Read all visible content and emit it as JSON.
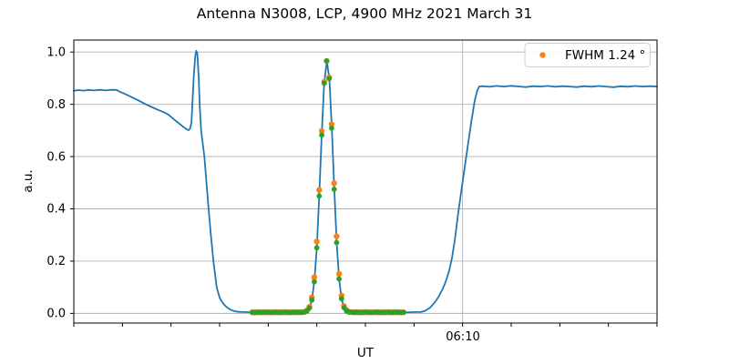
{
  "title": "Antenna N3008, LCP, 4900 MHz 2021 March 31",
  "colors": {
    "signal_line": "#1f77b4",
    "fit_points": "#ff7f0e",
    "data_points": "#2ca02c",
    "grid": "#b0b0b0",
    "spine": "#000000",
    "legend_border": "#cccccc",
    "background": "#ffffff"
  },
  "chart_data": {
    "type": "line",
    "title": "Antenna N3008, LCP, 4900 MHz 2021 March 31",
    "xlabel": "UT",
    "ylabel": "a.u.",
    "x_axis": {
      "unit": "minutes after 06:02 UT",
      "range": [
        0,
        12
      ],
      "minor_tick_positions": [
        0,
        1,
        2,
        3,
        4,
        5,
        6,
        7,
        8,
        9,
        10,
        11,
        12
      ],
      "labeled_ticks": [
        {
          "pos": 8,
          "label": "06:10"
        }
      ],
      "grid_on_labeled": true
    },
    "y_axis": {
      "range": [
        -0.037,
        1.046
      ],
      "ticks": [
        0.0,
        0.2,
        0.4,
        0.6,
        0.8,
        1.0
      ],
      "tick_labels": [
        "0.0",
        "0.2",
        "0.4",
        "0.6",
        "0.8",
        "1.0"
      ],
      "grid": true
    },
    "legend": {
      "label": "FWHM 1.24 °",
      "marker": "circle",
      "marker_color": "#ff7f0e",
      "position": "upper right"
    },
    "series": [
      {
        "name": "drift_scan_signal",
        "type": "line",
        "color": "#1f77b4",
        "width": 1.8,
        "points": [
          [
            0,
            0.852
          ],
          [
            0.1,
            0.8545
          ],
          [
            0.2,
            0.8525
          ],
          [
            0.3,
            0.855
          ],
          [
            0.42,
            0.853
          ],
          [
            0.54,
            0.8555
          ],
          [
            0.66,
            0.853
          ],
          [
            0.78,
            0.8555
          ],
          [
            0.88,
            0.855
          ],
          [
            0.95,
            0.848
          ],
          [
            1.05,
            0.84
          ],
          [
            1.15,
            0.831
          ],
          [
            1.25,
            0.822
          ],
          [
            1.35,
            0.813
          ],
          [
            1.48,
            0.8
          ],
          [
            1.6,
            0.79
          ],
          [
            1.72,
            0.78
          ],
          [
            1.85,
            0.77
          ],
          [
            1.95,
            0.76
          ],
          [
            2.05,
            0.744
          ],
          [
            2.15,
            0.729
          ],
          [
            2.25,
            0.714
          ],
          [
            2.32,
            0.705
          ],
          [
            2.36,
            0.701
          ],
          [
            2.39,
            0.706
          ],
          [
            2.42,
            0.73
          ],
          [
            2.44,
            0.8
          ],
          [
            2.47,
            0.91
          ],
          [
            2.5,
            0.985
          ],
          [
            2.52,
            1.005
          ],
          [
            2.54,
            0.995
          ],
          [
            2.57,
            0.9
          ],
          [
            2.59,
            0.8
          ],
          [
            2.62,
            0.7
          ],
          [
            2.686,
            0.6
          ],
          [
            2.73,
            0.5
          ],
          [
            2.774,
            0.4
          ],
          [
            2.82,
            0.3
          ],
          [
            2.873,
            0.2
          ],
          [
            2.94,
            0.1
          ],
          [
            3.0,
            0.06
          ],
          [
            3.04,
            0.047
          ],
          [
            3.1,
            0.032
          ],
          [
            3.17,
            0.02
          ],
          [
            3.25,
            0.012
          ],
          [
            3.32,
            0.008
          ],
          [
            3.4,
            0.006
          ],
          [
            3.5,
            0.005
          ],
          [
            3.67,
            0.004
          ],
          [
            3.9,
            0.0035
          ],
          [
            4.1,
            0.0045
          ],
          [
            4.3,
            0.004
          ],
          [
            4.5,
            0.0035
          ],
          [
            4.65,
            0.004
          ],
          [
            4.74,
            0.005
          ],
          [
            4.8,
            0.009
          ],
          [
            4.85,
            0.021
          ],
          [
            4.9,
            0.053
          ],
          [
            4.95,
            0.124
          ],
          [
            5.0,
            0.252
          ],
          [
            5.05,
            0.449
          ],
          [
            5.1,
            0.68
          ],
          [
            5.15,
            0.879
          ],
          [
            5.206,
            0.966
          ],
          [
            5.26,
            0.895
          ],
          [
            5.31,
            0.705
          ],
          [
            5.36,
            0.471
          ],
          [
            5.41,
            0.268
          ],
          [
            5.46,
            0.13
          ],
          [
            5.51,
            0.055
          ],
          [
            5.56,
            0.022
          ],
          [
            5.61,
            0.009
          ],
          [
            5.66,
            0.005
          ],
          [
            5.72,
            0.004
          ],
          [
            5.9,
            0.0035
          ],
          [
            6.1,
            0.0045
          ],
          [
            6.3,
            0.004
          ],
          [
            6.5,
            0.0035
          ],
          [
            6.7,
            0.004
          ],
          [
            6.9,
            0.0045
          ],
          [
            7.05,
            0.005
          ],
          [
            7.14,
            0.005
          ],
          [
            7.23,
            0.01
          ],
          [
            7.33,
            0.022
          ],
          [
            7.42,
            0.04
          ],
          [
            7.5,
            0.062
          ],
          [
            7.58,
            0.09
          ],
          [
            7.65,
            0.12
          ],
          [
            7.72,
            0.16
          ],
          [
            7.78,
            0.21
          ],
          [
            7.84,
            0.28
          ],
          [
            7.9,
            0.37
          ],
          [
            7.97,
            0.465
          ],
          [
            8.04,
            0.555
          ],
          [
            8.11,
            0.645
          ],
          [
            8.18,
            0.735
          ],
          [
            8.25,
            0.815
          ],
          [
            8.3,
            0.852
          ],
          [
            8.34,
            0.868
          ],
          [
            8.4,
            0.8695
          ],
          [
            8.55,
            0.867
          ],
          [
            8.7,
            0.8705
          ],
          [
            8.85,
            0.868
          ],
          [
            9.0,
            0.871
          ],
          [
            9.15,
            0.8685
          ],
          [
            9.3,
            0.866
          ],
          [
            9.45,
            0.8695
          ],
          [
            9.6,
            0.868
          ],
          [
            9.75,
            0.8705
          ],
          [
            9.9,
            0.867
          ],
          [
            10.05,
            0.8695
          ],
          [
            10.2,
            0.868
          ],
          [
            10.35,
            0.866
          ],
          [
            10.5,
            0.8695
          ],
          [
            10.65,
            0.8675
          ],
          [
            10.8,
            0.87
          ],
          [
            10.95,
            0.868
          ],
          [
            11.1,
            0.8655
          ],
          [
            11.25,
            0.869
          ],
          [
            11.4,
            0.8675
          ],
          [
            11.55,
            0.87
          ],
          [
            11.7,
            0.868
          ],
          [
            11.85,
            0.8695
          ],
          [
            12,
            0.868
          ]
        ]
      },
      {
        "name": "gaussian_fit_points",
        "type": "scatter",
        "color": "#ff7f0e",
        "radius": 3.2,
        "points": [
          [
            3.673,
            0.004
          ],
          [
            3.724,
            0.004
          ],
          [
            3.775,
            0.004
          ],
          [
            3.826,
            0.004
          ],
          [
            3.877,
            0.004
          ],
          [
            3.928,
            0.004
          ],
          [
            3.979,
            0.004
          ],
          [
            4.03,
            0.004
          ],
          [
            4.081,
            0.004
          ],
          [
            4.132,
            0.004
          ],
          [
            4.183,
            0.004
          ],
          [
            4.234,
            0.004
          ],
          [
            4.285,
            0.004
          ],
          [
            4.336,
            0.004
          ],
          [
            4.387,
            0.004
          ],
          [
            4.438,
            0.004
          ],
          [
            4.489,
            0.004
          ],
          [
            4.54,
            0.004
          ],
          [
            4.591,
            0.004
          ],
          [
            4.642,
            0.004
          ],
          [
            4.693,
            0.0045
          ],
          [
            4.744,
            0.006
          ],
          [
            4.795,
            0.011
          ],
          [
            4.846,
            0.025
          ],
          [
            4.897,
            0.061
          ],
          [
            4.948,
            0.138
          ],
          [
            4.999,
            0.275
          ],
          [
            5.05,
            0.472
          ],
          [
            5.101,
            0.698
          ],
          [
            5.152,
            0.886
          ],
          [
            5.203,
            0.966
          ],
          [
            5.254,
            0.903
          ],
          [
            5.305,
            0.724
          ],
          [
            5.356,
            0.498
          ],
          [
            5.407,
            0.295
          ],
          [
            5.458,
            0.151
          ],
          [
            5.509,
            0.068
          ],
          [
            5.56,
            0.028
          ],
          [
            5.611,
            0.012
          ],
          [
            5.662,
            0.006
          ],
          [
            5.713,
            0.005
          ],
          [
            5.764,
            0.0045
          ],
          [
            5.815,
            0.004
          ],
          [
            5.866,
            0.004
          ],
          [
            5.917,
            0.004
          ],
          [
            5.968,
            0.004
          ],
          [
            6.019,
            0.004
          ],
          [
            6.07,
            0.004
          ],
          [
            6.121,
            0.004
          ],
          [
            6.172,
            0.004
          ],
          [
            6.223,
            0.004
          ],
          [
            6.274,
            0.004
          ],
          [
            6.325,
            0.004
          ],
          [
            6.376,
            0.004
          ],
          [
            6.427,
            0.004
          ],
          [
            6.478,
            0.004
          ],
          [
            6.529,
            0.004
          ],
          [
            6.58,
            0.004
          ],
          [
            6.631,
            0.004
          ],
          [
            6.682,
            0.004
          ],
          [
            6.733,
            0.004
          ],
          [
            6.784,
            0.004
          ]
        ]
      },
      {
        "name": "selected_data_points",
        "type": "scatter",
        "color": "#2ca02c",
        "radius": 2.9,
        "points": [
          [
            3.673,
            0.004
          ],
          [
            3.724,
            0.003
          ],
          [
            3.775,
            0.005
          ],
          [
            3.826,
            0.004
          ],
          [
            3.877,
            0.003
          ],
          [
            3.928,
            0.005
          ],
          [
            3.979,
            0.004
          ],
          [
            4.03,
            0.004
          ],
          [
            4.081,
            0.003
          ],
          [
            4.132,
            0.005
          ],
          [
            4.183,
            0.004
          ],
          [
            4.234,
            0.003
          ],
          [
            4.285,
            0.004
          ],
          [
            4.336,
            0.005
          ],
          [
            4.387,
            0.004
          ],
          [
            4.438,
            0.003
          ],
          [
            4.489,
            0.004
          ],
          [
            4.54,
            0.004
          ],
          [
            4.591,
            0.005
          ],
          [
            4.642,
            0.004
          ],
          [
            4.693,
            0.004
          ],
          [
            4.744,
            0.005
          ],
          [
            4.795,
            0.009
          ],
          [
            4.846,
            0.02
          ],
          [
            4.897,
            0.051
          ],
          [
            4.948,
            0.121
          ],
          [
            4.999,
            0.251
          ],
          [
            5.05,
            0.449
          ],
          [
            5.101,
            0.682
          ],
          [
            5.152,
            0.881
          ],
          [
            5.203,
            0.966
          ],
          [
            5.254,
            0.898
          ],
          [
            5.305,
            0.709
          ],
          [
            5.356,
            0.475
          ],
          [
            5.407,
            0.271
          ],
          [
            5.458,
            0.132
          ],
          [
            5.509,
            0.056
          ],
          [
            5.56,
            0.022
          ],
          [
            5.611,
            0.009
          ],
          [
            5.662,
            0.005
          ],
          [
            5.713,
            0.004
          ],
          [
            5.764,
            0.003
          ],
          [
            5.815,
            0.005
          ],
          [
            5.866,
            0.004
          ],
          [
            5.917,
            0.003
          ],
          [
            5.968,
            0.004
          ],
          [
            6.019,
            0.005
          ],
          [
            6.07,
            0.004
          ],
          [
            6.121,
            0.003
          ],
          [
            6.172,
            0.004
          ],
          [
            6.223,
            0.005
          ],
          [
            6.274,
            0.004
          ],
          [
            6.325,
            0.003
          ],
          [
            6.376,
            0.004
          ],
          [
            6.427,
            0.004
          ],
          [
            6.478,
            0.005
          ],
          [
            6.529,
            0.003
          ],
          [
            6.58,
            0.004
          ],
          [
            6.631,
            0.005
          ],
          [
            6.682,
            0.004
          ],
          [
            6.733,
            0.003
          ],
          [
            6.784,
            0.004
          ]
        ]
      }
    ]
  }
}
